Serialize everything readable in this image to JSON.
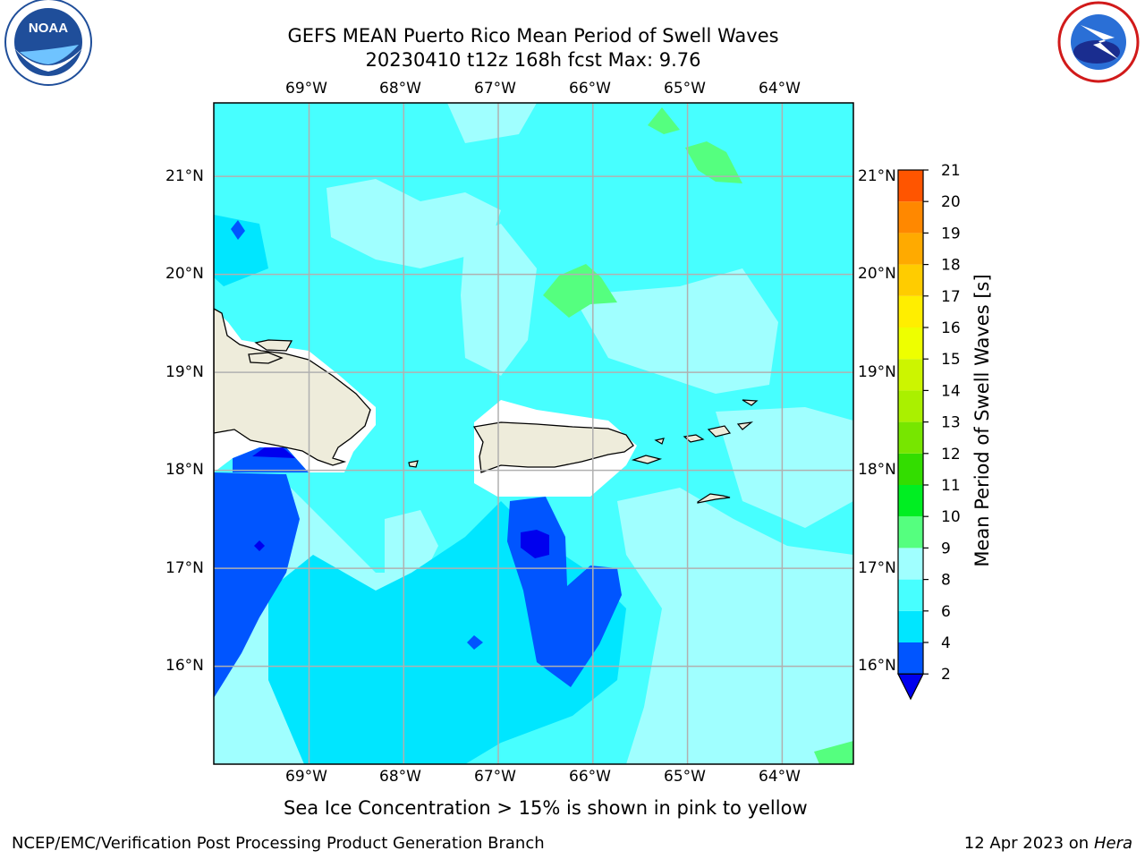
{
  "header": {
    "title_line1": "GEFS MEAN Puerto Rico Mean Period of Swell Waves",
    "title_line2": "20230410 t12z 168h fcst   Max: 9.76"
  },
  "logos": {
    "left": {
      "text": "NOAA",
      "ring_text": "NATIONAL OCEANIC AND ATMOSPHERIC ADMINISTRATION · U.S. DEPARTMENT OF COMMERCE"
    },
    "right": {
      "ring_text": "NATIONAL WEATHER SERVICE"
    }
  },
  "map": {
    "lon_labels": [
      "69°W",
      "68°W",
      "67°W",
      "66°W",
      "65°W",
      "64°W"
    ],
    "lat_labels": [
      "21°N",
      "20°N",
      "19°N",
      "18°N",
      "17°N",
      "16°N"
    ],
    "lon_values": [
      -69,
      -68,
      -67,
      -66,
      -65,
      -64
    ],
    "lat_values": [
      21,
      20,
      19,
      18,
      17,
      16
    ],
    "extent": {
      "lon_min": -70,
      "lon_max": -63.25,
      "lat_min": 15,
      "lat_max": 21.75
    }
  },
  "colorbar": {
    "label": "Mean Period of Swell Waves [s]",
    "levels": [
      "2",
      "4",
      "6",
      "8",
      "9",
      "10",
      "11",
      "12",
      "13",
      "14",
      "15",
      "16",
      "17",
      "18",
      "19",
      "20",
      "21"
    ],
    "colors": [
      "#0055ff",
      "#00e6ff",
      "#47ffff",
      "#a0ffff",
      "#55ff7f",
      "#00ee22",
      "#33dd00",
      "#77e600",
      "#aaf000",
      "#ccf500",
      "#eeff00",
      "#ffee00",
      "#ffcc00",
      "#ffaa00",
      "#ff8800",
      "#ff5500",
      "#ff2200"
    ],
    "under_color": "#0000ee"
  },
  "caption": "Sea Ice Concentration > 15% is shown in pink to yellow",
  "footer": {
    "left": "NCEP/EMC/Verification Post Processing Product Generation Branch",
    "right_prefix": "12 Apr 2023 on ",
    "right_machine": "Hera"
  }
}
